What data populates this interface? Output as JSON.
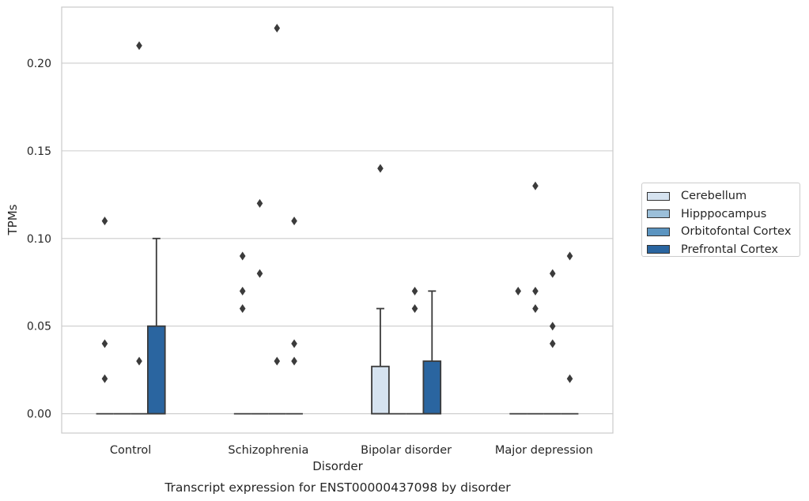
{
  "chart_data": {
    "type": "box",
    "title": "Transcript expression for ENST00000437098 by disorder",
    "xlabel": "Disorder",
    "ylabel": "TPMs",
    "ylim": [
      -0.011,
      0.232
    ],
    "yticks": [
      0.0,
      0.05,
      0.1,
      0.15,
      0.2
    ],
    "ytick_labels": [
      "0.00",
      "0.05",
      "0.10",
      "0.15",
      "0.20"
    ],
    "grid": "horizontal",
    "legend_position": "right",
    "categories": [
      "Control",
      "Schizophrenia",
      "Bipolar disorder",
      "Major depression"
    ],
    "series": [
      {
        "name": "Cerebellum",
        "color": "#d6e3f0",
        "boxes": [
          {
            "q1": 0,
            "median": 0,
            "q3": 0,
            "whisker_low": 0,
            "whisker_high": 0,
            "outliers": [
              0.02,
              0.04,
              0.11
            ]
          },
          {
            "q1": 0,
            "median": 0,
            "q3": 0,
            "whisker_low": 0,
            "whisker_high": 0,
            "outliers": [
              0.06,
              0.07,
              0.09
            ]
          },
          {
            "q1": 0,
            "median": 0,
            "q3": 0.027,
            "whisker_low": 0,
            "whisker_high": 0.06,
            "outliers": [
              0.14
            ]
          },
          {
            "q1": 0,
            "median": 0,
            "q3": 0,
            "whisker_low": 0,
            "whisker_high": 0,
            "outliers": [
              0.07
            ]
          }
        ]
      },
      {
        "name": "Hipppocampus",
        "color": "#9bbfd9",
        "boxes": [
          {
            "q1": 0,
            "median": 0,
            "q3": 0,
            "whisker_low": 0,
            "whisker_high": 0,
            "outliers": []
          },
          {
            "q1": 0,
            "median": 0,
            "q3": 0,
            "whisker_low": 0,
            "whisker_high": 0,
            "outliers": [
              0.08,
              0.12
            ]
          },
          {
            "q1": 0,
            "median": 0,
            "q3": 0,
            "whisker_low": 0,
            "whisker_high": 0,
            "outliers": []
          },
          {
            "q1": 0,
            "median": 0,
            "q3": 0,
            "whisker_low": 0,
            "whisker_high": 0,
            "outliers": [
              0.06,
              0.07,
              0.13
            ]
          }
        ]
      },
      {
        "name": "Orbitofontal Cortex",
        "color": "#5b94c0",
        "boxes": [
          {
            "q1": 0,
            "median": 0,
            "q3": 0,
            "whisker_low": 0,
            "whisker_high": 0,
            "outliers": [
              0.03,
              0.21
            ]
          },
          {
            "q1": 0,
            "median": 0,
            "q3": 0,
            "whisker_low": 0,
            "whisker_high": 0,
            "outliers": [
              0.03,
              0.22
            ]
          },
          {
            "q1": 0,
            "median": 0,
            "q3": 0,
            "whisker_low": 0,
            "whisker_high": 0,
            "outliers": [
              0.06,
              0.07
            ]
          },
          {
            "q1": 0,
            "median": 0,
            "q3": 0,
            "whisker_low": 0,
            "whisker_high": 0,
            "outliers": [
              0.04,
              0.05,
              0.08
            ]
          }
        ]
      },
      {
        "name": "Prefrontal Cortex",
        "color": "#2a65a0",
        "boxes": [
          {
            "q1": 0,
            "median": 0,
            "q3": 0.05,
            "whisker_low": 0,
            "whisker_high": 0.1,
            "outliers": []
          },
          {
            "q1": 0,
            "median": 0,
            "q3": 0,
            "whisker_low": 0,
            "whisker_high": 0,
            "outliers": [
              0.03,
              0.04,
              0.11
            ]
          },
          {
            "q1": 0,
            "median": 0,
            "q3": 0.03,
            "whisker_low": 0,
            "whisker_high": 0.07,
            "outliers": []
          },
          {
            "q1": 0,
            "median": 0,
            "q3": 0,
            "whisker_low": 0,
            "whisker_high": 0,
            "outliers": [
              0.02,
              0.09
            ]
          }
        ]
      }
    ]
  }
}
